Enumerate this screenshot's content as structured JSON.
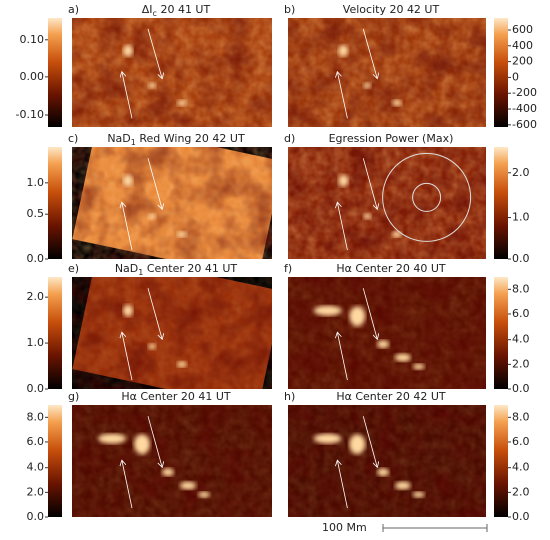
{
  "panels": [
    {
      "label": "a)",
      "title": [
        "ΔI",
        "c",
        " 20 41 UT"
      ],
      "colorbar_ticks": [
        "0.10",
        "0.00",
        "-0.10"
      ]
    },
    {
      "label": "b)",
      "title": [
        "Velocity 20 42 UT"
      ],
      "colorbar_ticks": [
        "600",
        "400",
        "200",
        "0",
        "-200",
        "-400",
        "-600"
      ]
    },
    {
      "label": "c)",
      "title": [
        "NaD",
        "1",
        " Red Wing 20 42 UT"
      ],
      "colorbar_ticks": [
        "1.0",
        "0.5",
        "0.0"
      ]
    },
    {
      "label": "d)",
      "title": [
        "Egression Power (Max)"
      ],
      "colorbar_ticks": [
        "2.0",
        "1.0",
        "0.0"
      ]
    },
    {
      "label": "e)",
      "title": [
        "NaD",
        "1",
        " Center 20 41 UT"
      ],
      "colorbar_ticks": [
        "2.0",
        "1.0",
        "0.0"
      ]
    },
    {
      "label": "f)",
      "title": [
        "Hα Center 20 40 UT"
      ],
      "colorbar_ticks": [
        "8.0",
        "6.0",
        "4.0",
        "2.0",
        "0.0"
      ]
    },
    {
      "label": "g)",
      "title": [
        "Hα Center 20 41 UT"
      ],
      "colorbar_ticks": [
        "8.0",
        "6.0",
        "4.0",
        "2.0",
        "0.0"
      ]
    },
    {
      "label": "h)",
      "title": [
        "Hα Center 20 42 UT"
      ],
      "colorbar_ticks": [
        "8.0",
        "6.0",
        "4.0",
        "2.0",
        "0.0"
      ]
    }
  ],
  "scale_bar": "100 Mm"
}
